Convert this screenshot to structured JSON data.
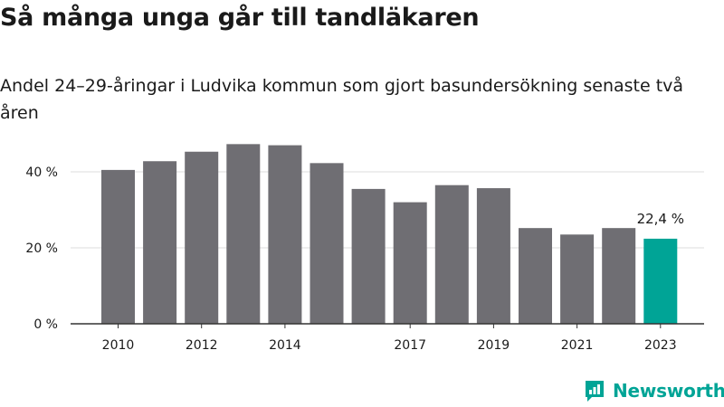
{
  "title": "Så många unga går till tandläkaren",
  "subtitle": "Andel 24–29-åringar i Ludvika kommun som gjort basundersökning senaste två åren",
  "brand": "Newsworthy",
  "colors": {
    "bar": "#6f6e73",
    "highlight": "#00a496",
    "grid": "#dddddd",
    "axis": "#333333",
    "text": "#1a1a1a"
  },
  "chart_data": {
    "type": "bar",
    "x": [
      2010,
      2011,
      2012,
      2013,
      2014,
      2015,
      2016,
      2017,
      2018,
      2019,
      2020,
      2021,
      2022,
      2023
    ],
    "x_tick_labels": [
      "2010",
      "",
      "2012",
      "",
      "2014",
      "",
      "",
      "2017",
      "",
      "2019",
      "",
      "2021",
      "",
      "2023"
    ],
    "values": [
      40.5,
      42.8,
      45.3,
      47.3,
      47.0,
      42.3,
      35.5,
      32.0,
      36.5,
      35.7,
      25.2,
      23.5,
      25.2,
      22.4
    ],
    "highlight_index": 13,
    "highlight_label": "22,4 %",
    "ylim": [
      0,
      50
    ],
    "y_ticks": [
      0,
      20,
      40
    ],
    "y_tick_labels": [
      "0 %",
      "20 %",
      "40 %"
    ],
    "grid": true,
    "xlabel": "",
    "ylabel": ""
  }
}
